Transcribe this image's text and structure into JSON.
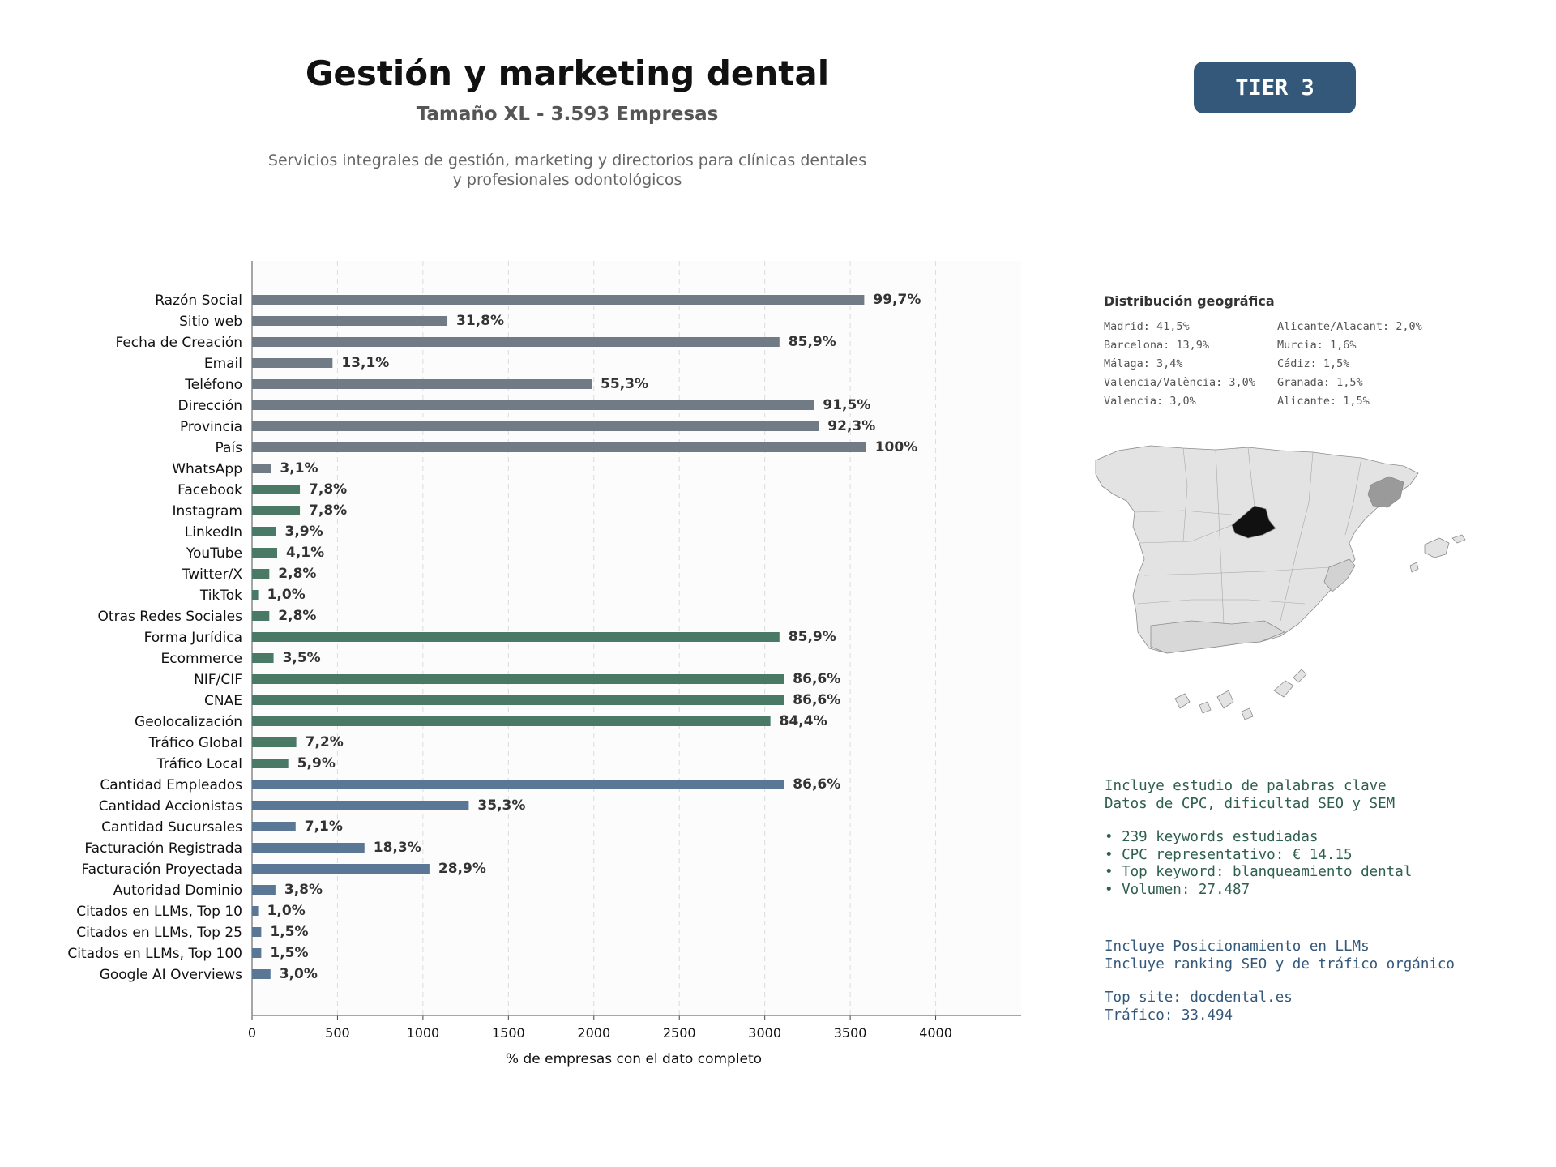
{
  "header": {
    "title": "Gestión y marketing dental",
    "subtitle": "Tamaño XL - 3.593 Empresas",
    "description": "Servicios integrales de gestión, marketing y directorios para clínicas dentales y profesionales odontológicos",
    "tier": "TIER 3"
  },
  "colors": {
    "gray": "#707b85",
    "green": "#4a7a66",
    "blue": "#5a7896",
    "tier": "#34587a",
    "madrid": "#111111",
    "barcelona": "#9a9a9a",
    "map_base": "#e3e3e3"
  },
  "chart_data": {
    "type": "bar",
    "orientation": "horizontal",
    "xlabel": "% de empresas con el dato completo",
    "xlim": [
      0,
      4500
    ],
    "xticks": [
      0,
      500,
      1000,
      1500,
      2000,
      2500,
      3000,
      3500,
      4000
    ],
    "grid": "vertical dashed",
    "categories": [
      {
        "label": "Razón Social",
        "value": 3582,
        "pct": "99,7%",
        "group": "gray"
      },
      {
        "label": "Sitio web",
        "value": 1143,
        "pct": "31,8%",
        "group": "gray"
      },
      {
        "label": "Fecha de Creación",
        "value": 3086,
        "pct": "85,9%",
        "group": "gray"
      },
      {
        "label": "Email",
        "value": 471,
        "pct": "13,1%",
        "group": "gray"
      },
      {
        "label": "Teléfono",
        "value": 1987,
        "pct": "55,3%",
        "group": "gray"
      },
      {
        "label": "Dirección",
        "value": 3288,
        "pct": "91,5%",
        "group": "gray"
      },
      {
        "label": "Provincia",
        "value": 3316,
        "pct": "92,3%",
        "group": "gray"
      },
      {
        "label": "País",
        "value": 3593,
        "pct": "100%",
        "group": "gray"
      },
      {
        "label": "WhatsApp",
        "value": 111,
        "pct": "3,1%",
        "group": "gray"
      },
      {
        "label": "Facebook",
        "value": 280,
        "pct": "7,8%",
        "group": "green"
      },
      {
        "label": "Instagram",
        "value": 280,
        "pct": "7,8%",
        "group": "green"
      },
      {
        "label": "LinkedIn",
        "value": 140,
        "pct": "3,9%",
        "group": "green"
      },
      {
        "label": "YouTube",
        "value": 147,
        "pct": "4,1%",
        "group": "green"
      },
      {
        "label": "Twitter/X",
        "value": 101,
        "pct": "2,8%",
        "group": "green"
      },
      {
        "label": "TikTok",
        "value": 36,
        "pct": "1,0%",
        "group": "green"
      },
      {
        "label": "Otras Redes Sociales",
        "value": 101,
        "pct": "2,8%",
        "group": "green"
      },
      {
        "label": "Forma Jurídica",
        "value": 3086,
        "pct": "85,9%",
        "group": "green"
      },
      {
        "label": "Ecommerce",
        "value": 126,
        "pct": "3,5%",
        "group": "green"
      },
      {
        "label": "NIF/CIF",
        "value": 3112,
        "pct": "86,6%",
        "group": "green"
      },
      {
        "label": "CNAE",
        "value": 3112,
        "pct": "86,6%",
        "group": "green"
      },
      {
        "label": "Geolocalización",
        "value": 3033,
        "pct": "84,4%",
        "group": "green"
      },
      {
        "label": "Tráfico Global",
        "value": 259,
        "pct": "7,2%",
        "group": "green"
      },
      {
        "label": "Tráfico Local",
        "value": 212,
        "pct": "5,9%",
        "group": "green"
      },
      {
        "label": "Cantidad Empleados",
        "value": 3112,
        "pct": "86,6%",
        "group": "blue"
      },
      {
        "label": "Cantidad Accionistas",
        "value": 1268,
        "pct": "35,3%",
        "group": "blue"
      },
      {
        "label": "Cantidad Sucursales",
        "value": 255,
        "pct": "7,1%",
        "group": "blue"
      },
      {
        "label": "Facturación Registrada",
        "value": 658,
        "pct": "18,3%",
        "group": "blue"
      },
      {
        "label": "Facturación Proyectada",
        "value": 1038,
        "pct": "28,9%",
        "group": "blue"
      },
      {
        "label": "Autoridad Dominio",
        "value": 137,
        "pct": "3,8%",
        "group": "blue"
      },
      {
        "label": "Citados en LLMs, Top 10",
        "value": 36,
        "pct": "1,0%",
        "group": "blue"
      },
      {
        "label": "Citados en LLMs, Top 25",
        "value": 54,
        "pct": "1,5%",
        "group": "blue"
      },
      {
        "label": "Citados en LLMs, Top 100",
        "value": 54,
        "pct": "1,5%",
        "group": "blue"
      },
      {
        "label": "Google AI Overviews",
        "value": 108,
        "pct": "3,0%",
        "group": "blue"
      }
    ]
  },
  "geo": {
    "title": "Distribución geográfica",
    "items": [
      "Madrid: 41,5%",
      "Alicante/Alacant: 2,0%",
      "Barcelona: 13,9%",
      "Murcia: 1,6%",
      "Málaga: 3,4%",
      "Cádiz: 1,5%",
      "Valencia/València: 3,0%",
      "Granada: 1,5%",
      "Valencia: 3,0%",
      "Alicante: 1,5%"
    ]
  },
  "keywords": {
    "line1": "Incluye estudio de palabras clave",
    "line2": "Datos de CPC, dificultad SEO y SEM",
    "b1": "• 239 keywords estudiadas",
    "b2": "• CPC representativo: € 14.15",
    "b3": "• Top keyword: blanqueamiento dental",
    "b4": "• Volumen: 27.487"
  },
  "llm": {
    "line1": "Incluye Posicionamiento en LLMs",
    "line2": "Incluye ranking SEO y de tráfico orgánico",
    "site": "Top site: docdental.es",
    "traffic": "Tráfico: 33.494"
  }
}
